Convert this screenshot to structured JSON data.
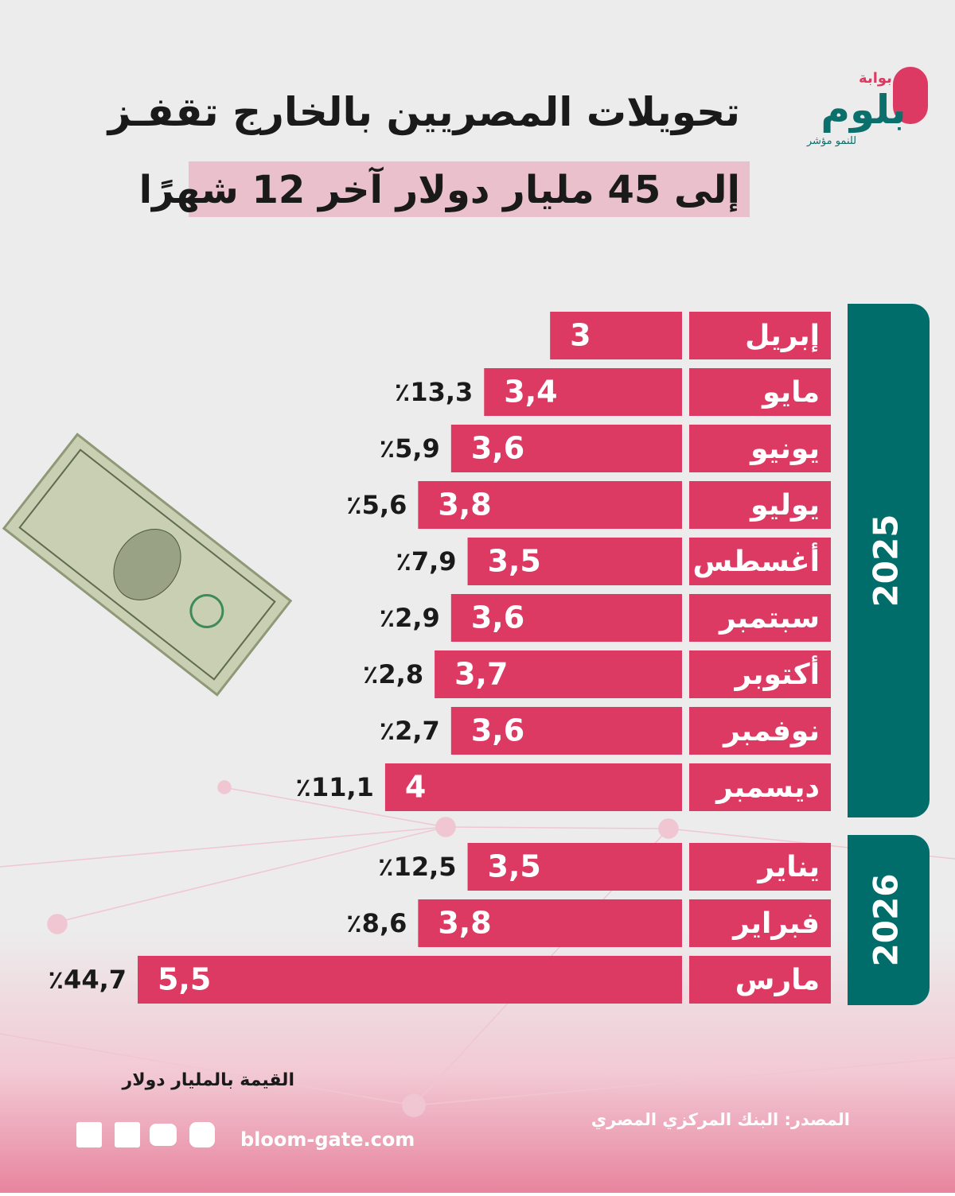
{
  "brand": {
    "top": "بوابة",
    "name": "بلوم",
    "tagline": "للنمو مؤشر"
  },
  "chart_data": {
    "type": "bar",
    "orientation": "horizontal",
    "title": "تحويلات المصريين بالخارج تقفـز",
    "subtitle": "إلى 45 مليار دولار آخر 12 شهرًا",
    "color": "#dc3a63",
    "xlim": [
      2.2,
      5.5
    ],
    "groups": [
      {
        "name": "2025",
        "categories": [
          "إبريل",
          "مايو",
          "يونيو",
          "يوليو",
          "أغسطس",
          "سبتمبر",
          "أكتوبر",
          "نوفمبر",
          "ديسمبر"
        ],
        "values": [
          3,
          3.4,
          3.6,
          3.8,
          3.5,
          3.6,
          3.7,
          3.6,
          4
        ],
        "value_labels": [
          "3",
          "3,4",
          "3,6",
          "3,8",
          "3,5",
          "3,6",
          "3,7",
          "3,6",
          "4"
        ],
        "growth": [
          null,
          13.3,
          5.9,
          5.6,
          7.9,
          2.9,
          2.8,
          2.7,
          11.1
        ],
        "growth_labels": [
          null,
          "٪13,3",
          "٪5,9",
          "٪5,6",
          "٪7,9",
          "٪2,9",
          "٪2,8",
          "٪2,7",
          "٪11,1"
        ]
      },
      {
        "name": "2026",
        "categories": [
          "يناير",
          "فبراير",
          "مارس"
        ],
        "values": [
          3.5,
          3.8,
          5.5
        ],
        "value_labels": [
          "3,5",
          "3,8",
          "5,5"
        ],
        "growth": [
          12.5,
          8.6,
          44.7
        ],
        "growth_labels": [
          "٪12,5",
          "٪8,6",
          "٪44,7"
        ]
      }
    ],
    "unit_note": "القيمة بالمليار دولار",
    "source": "المصدر: البنك المركزي المصري"
  },
  "footer": {
    "website": "bloom-gate.com"
  }
}
